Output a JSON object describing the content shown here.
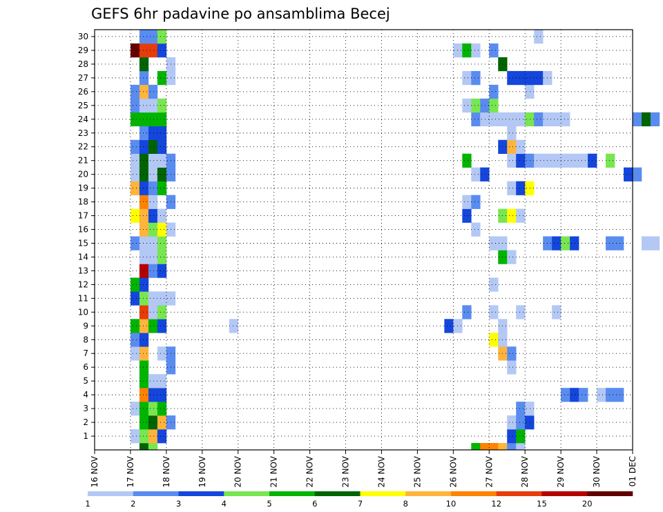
{
  "chart_data": {
    "type": "heatmap",
    "title": "GEFS 6hr padavine po ansamblima Becej",
    "x_tick_labels": [
      "16 NOV",
      "17 NOV",
      "18 NOV",
      "19 NOV",
      "20 NOV",
      "21 NOV",
      "22 NOV",
      "23 NOV",
      "24 NOV",
      "25 NOV",
      "26 NOV",
      "27 NOV",
      "28 NOV",
      "29 NOV",
      "30 NOV",
      "01 DEC"
    ],
    "y_tick_labels": [
      "1",
      "2",
      "3",
      "4",
      "5",
      "6",
      "7",
      "8",
      "9",
      "10",
      "11",
      "12",
      "13",
      "14",
      "15",
      "16",
      "17",
      "18",
      "19",
      "20",
      "21",
      "22",
      "23",
      "24",
      "25",
      "26",
      "27",
      "28",
      "29",
      "30"
    ],
    "xlim": [
      "16 NOV 00Z",
      "01 DEC 00Z"
    ],
    "ylim": [
      0,
      30
    ],
    "grid": true,
    "time_step_hours": 6,
    "colorbar": {
      "position": "bottom",
      "tick_labels": [
        "1",
        "2",
        "3",
        "4",
        "5",
        "6",
        "7",
        "8",
        "10",
        "12",
        "15",
        "20"
      ],
      "colors": [
        "#b4c8f5",
        "#5a8cf0",
        "#1446dc",
        "#78e650",
        "#00b400",
        "#006400",
        "#ffff00",
        "#ffb43c",
        "#ff8200",
        "#e63c0a",
        "#b40000",
        "#640000"
      ]
    },
    "legend": {
      "levels": [
        "1-2",
        "2-3",
        "3-4",
        "4-5",
        "5-6",
        "6-7",
        "7-8",
        "8-10",
        "10-12",
        "12-15",
        "15-20",
        ">20"
      ]
    },
    "cells_note": "member: list of [6h step index from 16 NOV 00Z, color class 0-11]",
    "cells": {
      "1": [
        [
          4,
          0
        ],
        [
          5,
          3
        ],
        [
          6,
          7
        ],
        [
          7,
          2
        ],
        [
          46,
          2
        ],
        [
          47,
          4
        ],
        [
          82,
          2
        ],
        [
          83,
          1
        ]
      ],
      "2": [
        [
          5,
          4
        ],
        [
          6,
          5
        ],
        [
          7,
          7
        ],
        [
          8,
          1
        ],
        [
          46,
          0
        ],
        [
          47,
          1
        ],
        [
          48,
          2
        ]
      ],
      "3": [
        [
          4,
          0
        ],
        [
          5,
          4
        ],
        [
          6,
          3
        ],
        [
          7,
          4
        ],
        [
          47,
          1
        ],
        [
          48,
          0
        ]
      ],
      "4": [
        [
          5,
          8
        ],
        [
          6,
          2
        ],
        [
          7,
          2
        ],
        [
          52,
          1
        ],
        [
          53,
          2
        ],
        [
          54,
          1
        ],
        [
          56,
          0
        ],
        [
          57,
          1
        ],
        [
          58,
          1
        ],
        [
          89,
          1
        ]
      ],
      "5": [
        [
          5,
          4
        ],
        [
          6,
          0
        ],
        [
          7,
          0
        ]
      ],
      "6": [
        [
          5,
          4
        ],
        [
          8,
          1
        ],
        [
          46,
          0
        ]
      ],
      "7": [
        [
          4,
          0
        ],
        [
          5,
          7
        ],
        [
          7,
          0
        ],
        [
          8,
          1
        ],
        [
          45,
          7
        ],
        [
          46,
          1
        ],
        [
          80,
          0
        ],
        [
          81,
          1
        ]
      ],
      "8": [
        [
          4,
          1
        ],
        [
          5,
          2
        ],
        [
          44,
          6
        ],
        [
          45,
          0
        ],
        [
          82,
          0
        ],
        [
          83,
          0
        ],
        [
          84,
          1
        ],
        [
          85,
          0
        ]
      ],
      "9": [
        [
          4,
          4
        ],
        [
          5,
          7
        ],
        [
          6,
          4
        ],
        [
          7,
          2
        ],
        [
          15,
          0
        ],
        [
          39,
          2
        ],
        [
          40,
          0
        ],
        [
          45,
          0
        ],
        [
          79,
          6
        ],
        [
          80,
          10
        ],
        [
          81,
          1
        ],
        [
          82,
          1
        ],
        [
          83,
          0
        ]
      ],
      "10": [
        [
          5,
          9
        ],
        [
          6,
          0
        ],
        [
          7,
          3
        ],
        [
          41,
          1
        ],
        [
          44,
          0
        ],
        [
          47,
          0
        ],
        [
          51,
          0
        ],
        [
          90,
          7
        ],
        [
          91,
          0
        ]
      ],
      "11": [
        [
          4,
          2
        ],
        [
          5,
          3
        ],
        [
          6,
          0
        ],
        [
          7,
          0
        ],
        [
          8,
          0
        ],
        [
          82,
          0
        ],
        [
          83,
          2
        ]
      ],
      "12": [
        [
          4,
          4
        ],
        [
          5,
          2
        ],
        [
          44,
          0
        ]
      ],
      "13": [
        [
          5,
          10
        ],
        [
          6,
          1
        ],
        [
          7,
          2
        ]
      ],
      "14": [
        [
          5,
          0
        ],
        [
          6,
          0
        ],
        [
          7,
          3
        ],
        [
          45,
          4
        ],
        [
          46,
          0
        ]
      ],
      "15": [
        [
          4,
          1
        ],
        [
          5,
          0
        ],
        [
          6,
          0
        ],
        [
          7,
          3
        ],
        [
          44,
          0
        ],
        [
          45,
          0
        ],
        [
          50,
          1
        ],
        [
          51,
          2
        ],
        [
          52,
          3
        ],
        [
          53,
          2
        ],
        [
          57,
          1
        ],
        [
          58,
          1
        ],
        [
          61,
          0
        ],
        [
          62,
          0
        ],
        [
          64,
          3
        ],
        [
          67,
          0
        ],
        [
          68,
          0
        ],
        [
          69,
          1
        ],
        [
          70,
          4
        ],
        [
          71,
          0
        ],
        [
          72,
          0
        ],
        [
          73,
          0
        ]
      ],
      "16": [
        [
          5,
          7
        ],
        [
          6,
          3
        ],
        [
          7,
          6
        ],
        [
          8,
          0
        ],
        [
          42,
          0
        ],
        [
          94,
          0
        ]
      ],
      "17": [
        [
          4,
          6
        ],
        [
          5,
          7
        ],
        [
          6,
          2
        ],
        [
          7,
          0
        ],
        [
          41,
          2
        ],
        [
          45,
          3
        ],
        [
          46,
          6
        ],
        [
          47,
          0
        ],
        [
          94,
          1
        ]
      ],
      "18": [
        [
          5,
          8
        ],
        [
          6,
          0
        ],
        [
          8,
          1
        ],
        [
          41,
          0
        ],
        [
          42,
          1
        ]
      ],
      "19": [
        [
          4,
          7
        ],
        [
          5,
          2
        ],
        [
          6,
          1
        ],
        [
          7,
          4
        ],
        [
          46,
          0
        ],
        [
          47,
          2
        ],
        [
          48,
          6
        ],
        [
          79,
          0
        ]
      ],
      "20": [
        [
          4,
          0
        ],
        [
          5,
          5
        ],
        [
          6,
          0
        ],
        [
          7,
          5
        ],
        [
          8,
          1
        ],
        [
          42,
          0
        ],
        [
          43,
          2
        ],
        [
          59,
          2
        ],
        [
          60,
          1
        ],
        [
          95,
          1
        ]
      ],
      "21": [
        [
          4,
          0
        ],
        [
          5,
          5
        ],
        [
          6,
          0
        ],
        [
          7,
          0
        ],
        [
          8,
          1
        ],
        [
          41,
          4
        ],
        [
          46,
          0
        ],
        [
          47,
          2
        ],
        [
          48,
          1
        ],
        [
          49,
          0
        ],
        [
          50,
          0
        ],
        [
          51,
          0
        ],
        [
          52,
          0
        ],
        [
          53,
          0
        ],
        [
          54,
          0
        ],
        [
          55,
          2
        ],
        [
          57,
          3
        ],
        [
          64,
          1
        ],
        [
          65,
          0
        ],
        [
          68,
          0
        ],
        [
          69,
          1
        ],
        [
          70,
          4
        ],
        [
          71,
          5
        ],
        [
          72,
          4
        ],
        [
          93,
          1
        ],
        [
          94,
          1
        ]
      ],
      "22": [
        [
          4,
          1
        ],
        [
          5,
          2
        ],
        [
          6,
          5
        ],
        [
          7,
          2
        ],
        [
          45,
          2
        ],
        [
          46,
          7
        ],
        [
          47,
          0
        ]
      ],
      "23": [
        [
          5,
          1
        ],
        [
          6,
          2
        ],
        [
          7,
          2
        ],
        [
          46,
          0
        ]
      ],
      "24": [
        [
          4,
          4
        ],
        [
          5,
          4
        ],
        [
          6,
          4
        ],
        [
          7,
          4
        ],
        [
          42,
          1
        ],
        [
          43,
          0
        ],
        [
          44,
          0
        ],
        [
          45,
          0
        ],
        [
          46,
          0
        ],
        [
          47,
          0
        ],
        [
          48,
          3
        ],
        [
          49,
          1
        ],
        [
          50,
          0
        ],
        [
          51,
          0
        ],
        [
          52,
          0
        ],
        [
          60,
          1
        ],
        [
          61,
          5
        ],
        [
          62,
          1
        ]
      ],
      "25": [
        [
          4,
          1
        ],
        [
          5,
          0
        ],
        [
          6,
          0
        ],
        [
          7,
          3
        ],
        [
          41,
          0
        ],
        [
          42,
          3
        ],
        [
          43,
          1
        ],
        [
          44,
          3
        ]
      ],
      "26": [
        [
          4,
          1
        ],
        [
          5,
          7
        ],
        [
          6,
          1
        ],
        [
          44,
          1
        ],
        [
          48,
          0
        ],
        [
          71,
          6
        ],
        [
          72,
          0
        ],
        [
          73,
          0
        ],
        [
          82,
          0
        ],
        [
          83,
          1
        ]
      ],
      "27": [
        [
          5,
          1
        ],
        [
          7,
          4
        ],
        [
          8,
          0
        ],
        [
          41,
          0
        ],
        [
          42,
          1
        ],
        [
          46,
          2
        ],
        [
          47,
          2
        ],
        [
          48,
          2
        ],
        [
          49,
          2
        ],
        [
          50,
          0
        ]
      ],
      "28": [
        [
          5,
          5
        ],
        [
          8,
          0
        ],
        [
          45,
          5
        ],
        [
          64,
          1
        ],
        [
          65,
          3
        ],
        [
          66,
          5
        ],
        [
          68,
          1
        ]
      ],
      "29": [
        [
          4,
          11
        ],
        [
          5,
          9
        ],
        [
          6,
          9
        ],
        [
          7,
          2
        ],
        [
          40,
          0
        ],
        [
          41,
          4
        ],
        [
          42,
          0
        ],
        [
          44,
          1
        ]
      ],
      "30": [
        [
          5,
          1
        ],
        [
          6,
          1
        ],
        [
          7,
          3
        ],
        [
          49,
          0
        ]
      ],
      "0": [
        [
          5,
          5
        ],
        [
          6,
          3
        ],
        [
          42,
          4
        ],
        [
          43,
          8
        ],
        [
          44,
          8
        ],
        [
          45,
          7
        ],
        [
          46,
          1
        ],
        [
          47,
          0
        ]
      ]
    }
  }
}
